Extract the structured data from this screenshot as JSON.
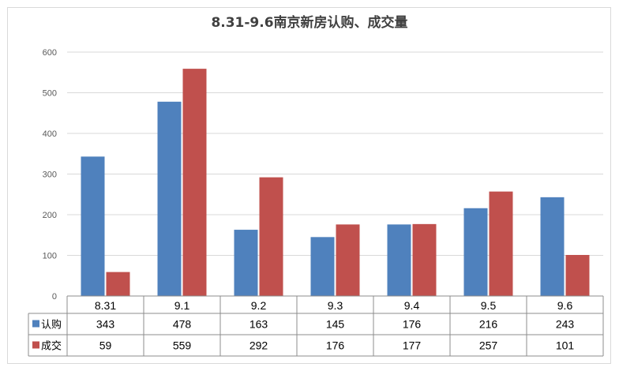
{
  "chart_data": {
    "type": "bar",
    "title": "8.31-9.6南京新房认购、成交量",
    "categories": [
      "8.31",
      "9.1",
      "9.2",
      "9.3",
      "9.4",
      "9.5",
      "9.6"
    ],
    "series": [
      {
        "name": "认购",
        "color": "#4f81bd",
        "values": [
          343,
          478,
          163,
          145,
          176,
          216,
          243
        ]
      },
      {
        "name": "成交",
        "color": "#c0504d",
        "values": [
          59,
          559,
          292,
          176,
          177,
          257,
          101
        ]
      }
    ],
    "ylim": [
      0,
      600
    ],
    "yticks": [
      "0",
      "100",
      "200",
      "300",
      "400",
      "500",
      "600"
    ],
    "grid": true,
    "legend": "data-table"
  }
}
